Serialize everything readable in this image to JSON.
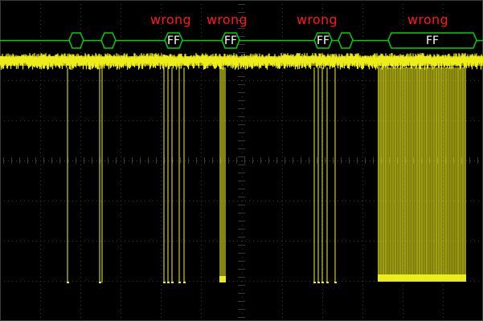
{
  "display": {
    "background_color": "#000000",
    "grid_color": "#3a3a3a",
    "trace_color": "#f2f21a",
    "decode_bus_color": "#00d200",
    "annotation_color": "#ff1a1a",
    "packet_label_color": "#ffffff"
  },
  "annotations": [
    {
      "text": "wrong"
    },
    {
      "text": "wrong"
    },
    {
      "text": "wrong"
    },
    {
      "text": "wrong"
    }
  ],
  "packets": [
    {
      "label": ""
    },
    {
      "label": ""
    },
    {
      "label": "FF"
    },
    {
      "label": "FF"
    },
    {
      "label": "FF"
    },
    {
      "label": ""
    },
    {
      "label": "FF"
    }
  ]
}
